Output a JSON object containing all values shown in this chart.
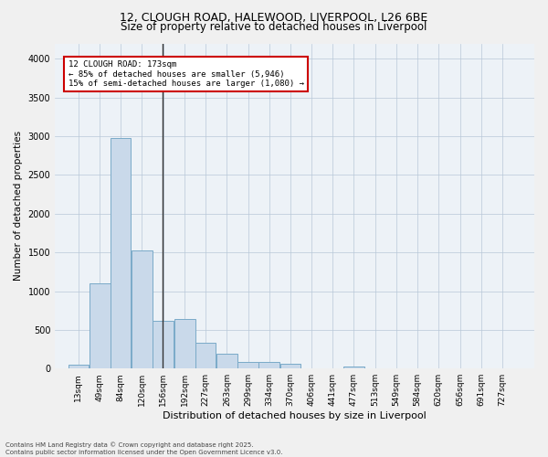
{
  "title_line1": "12, CLOUGH ROAD, HALEWOOD, LIVERPOOL, L26 6BE",
  "title_line2": "Size of property relative to detached houses in Liverpool",
  "xlabel": "Distribution of detached houses by size in Liverpool",
  "ylabel": "Number of detached properties",
  "bar_color": "#c9d9ea",
  "bar_edge_color": "#7aaac8",
  "background_color": "#edf2f7",
  "annotation_text": "12 CLOUGH ROAD: 173sqm\n← 85% of detached houses are smaller (5,946)\n15% of semi-detached houses are larger (1,080) →",
  "annotation_box_color": "#ffffff",
  "annotation_box_edge": "#cc0000",
  "vline_x": 173,
  "vline_color": "#333333",
  "categories": [
    "13sqm",
    "49sqm",
    "84sqm",
    "120sqm",
    "156sqm",
    "192sqm",
    "227sqm",
    "263sqm",
    "299sqm",
    "334sqm",
    "370sqm",
    "406sqm",
    "441sqm",
    "477sqm",
    "513sqm",
    "549sqm",
    "584sqm",
    "620sqm",
    "656sqm",
    "691sqm",
    "727sqm"
  ],
  "bin_edges": [
    13,
    49,
    84,
    120,
    156,
    192,
    227,
    263,
    299,
    334,
    370,
    406,
    441,
    477,
    513,
    549,
    584,
    620,
    656,
    691,
    727
  ],
  "bin_width": 36,
  "values": [
    45,
    1100,
    2980,
    1520,
    620,
    640,
    330,
    195,
    90,
    90,
    60,
    8,
    8,
    28,
    4,
    4,
    0,
    0,
    0,
    0,
    0
  ],
  "ylim": [
    0,
    4200
  ],
  "yticks": [
    0,
    500,
    1000,
    1500,
    2000,
    2500,
    3000,
    3500,
    4000
  ],
  "footer_line1": "Contains HM Land Registry data © Crown copyright and database right 2025.",
  "footer_line2": "Contains public sector information licensed under the Open Government Licence v3.0.",
  "fig_width": 6.0,
  "fig_height": 5.0,
  "dpi": 100
}
